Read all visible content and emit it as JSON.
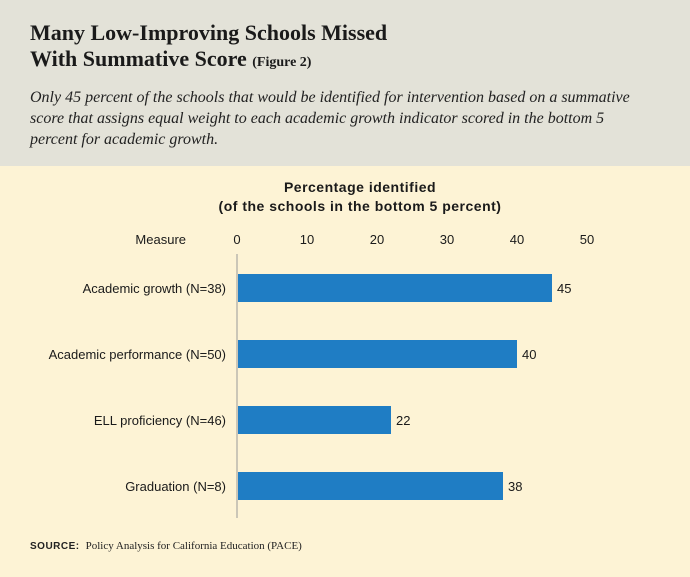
{
  "header": {
    "title_line1": "Many Low-Improving Schools Missed",
    "title_line2": "With Summative Score",
    "figure_label": "(Figure 2)",
    "subtitle": "Only 45 percent of the schools that would be identified for intervention based on a summative score that assigns equal weight to each academic growth indicator scored in the bottom 5 percent for academic growth."
  },
  "colors": {
    "header_bg": "#e3e2d8",
    "chart_bg": "#fdf3d5",
    "bar": "#1f7dc4"
  },
  "chart_data": {
    "type": "bar",
    "orientation": "horizontal",
    "title_line1": "Percentage identified",
    "title_line2": "(of the schools in the bottom 5 percent)",
    "category_header": "Measure",
    "categories": [
      "Academic growth (N=38)",
      "Academic performance (N=50)",
      "ELL proficiency (N=46)",
      "Graduation (N=8)"
    ],
    "values": [
      45,
      40,
      22,
      38
    ],
    "value_labels": [
      "45",
      "40",
      "22",
      "38"
    ],
    "xlim": [
      0,
      50
    ],
    "ticks": [
      0,
      10,
      20,
      30,
      40,
      50
    ],
    "tick_labels": [
      "0",
      "10",
      "20",
      "30",
      "40",
      "50"
    ],
    "grid": false
  },
  "footer": {
    "source_label": "SOURCE:",
    "source_text": "Policy Analysis for California Education (PACE)"
  }
}
